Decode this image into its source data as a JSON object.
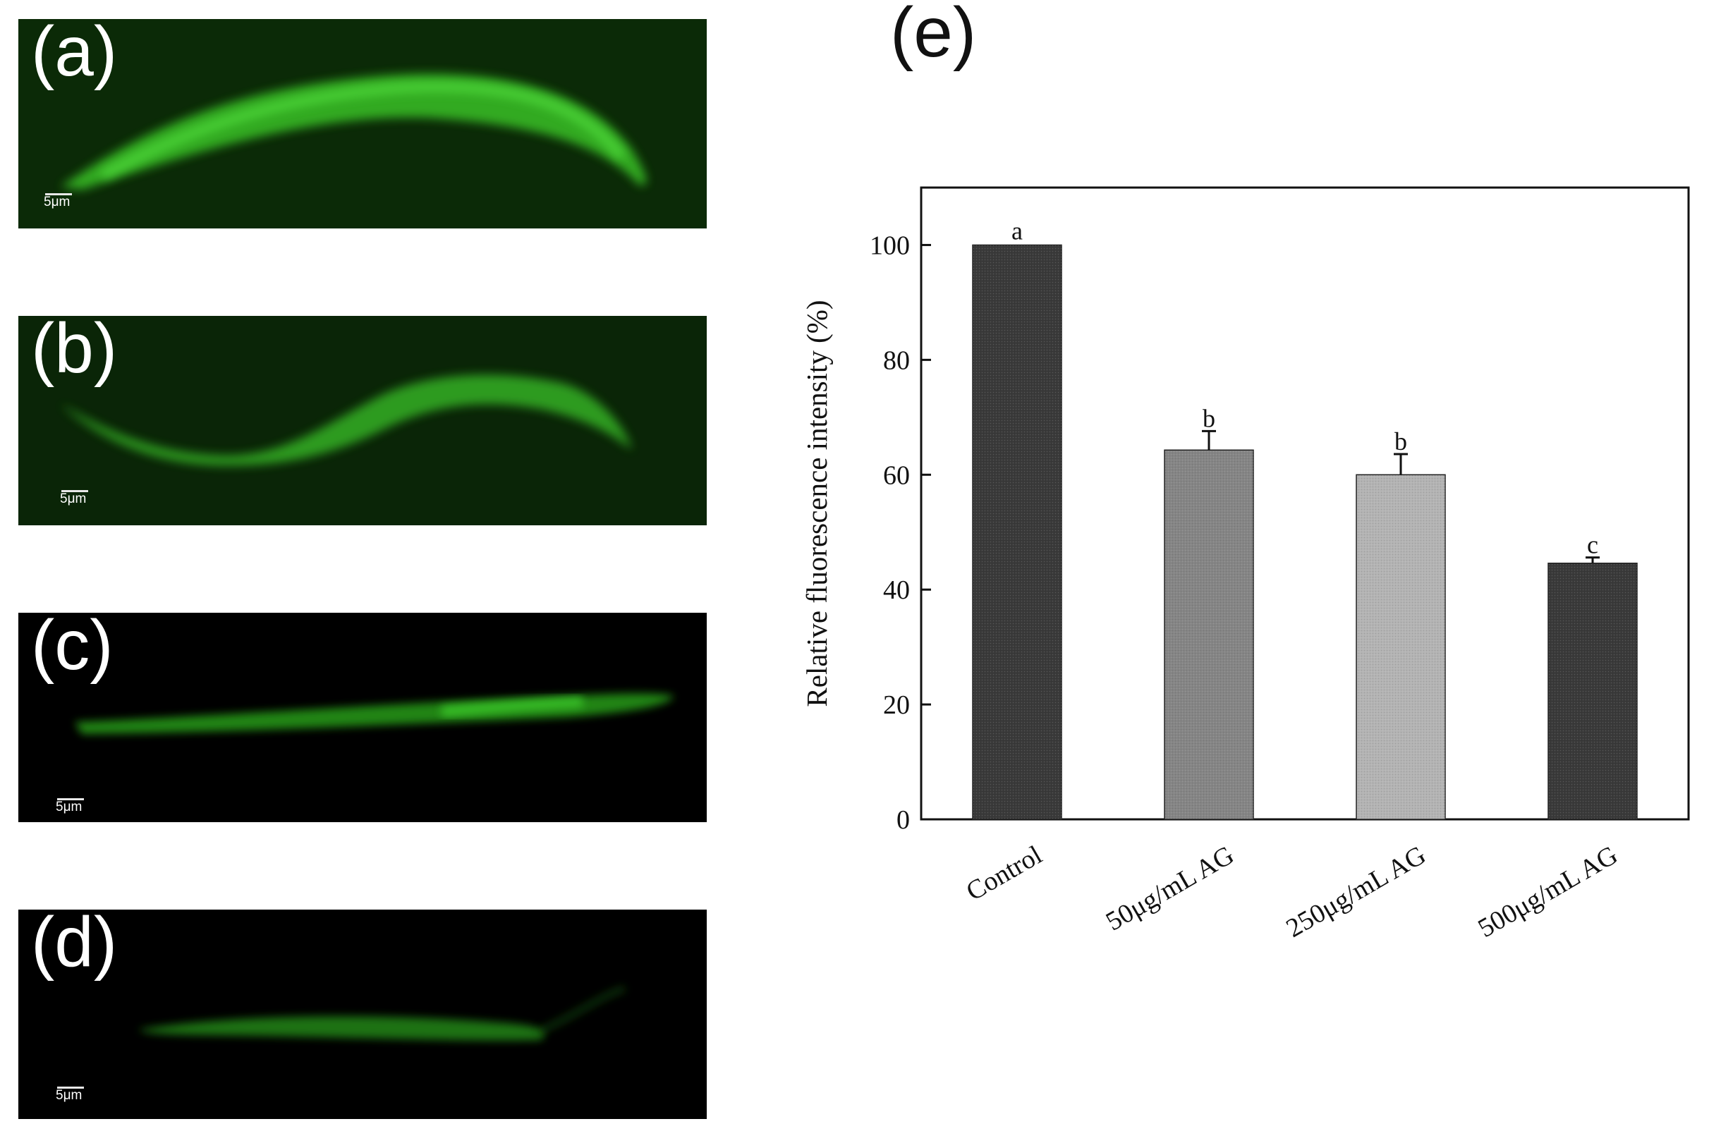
{
  "panels": [
    {
      "letter": "(a)",
      "scale_label": "5μm",
      "background": "#0b2a07",
      "worm_color": "#3fd52c",
      "brightness": 0.85
    },
    {
      "letter": "(b)",
      "scale_label": "5μm",
      "background": "#0a2507",
      "worm_color": "#3ccd2a",
      "brightness": 0.7
    },
    {
      "letter": "(c)",
      "scale_label": "5μm",
      "background": "#000000",
      "worm_color": "#2fb81f",
      "brightness": 0.55
    },
    {
      "letter": "(d)",
      "scale_label": "5μm",
      "background": "#000000",
      "worm_color": "#2ca31c",
      "brightness": 0.4
    }
  ],
  "e_panel_label": "(e)",
  "chart_data": {
    "type": "bar",
    "categories": [
      "Control",
      "50μg/mL AG",
      "250μg/mL AG",
      "500μg/mL AG"
    ],
    "values": [
      100,
      64.3,
      60,
      44.6
    ],
    "errors": [
      0,
      3.3,
      3.6,
      1.0
    ],
    "significance_letters": [
      "a",
      "b",
      "b",
      "c"
    ],
    "bar_colors": [
      "#3a3a3a",
      "#858585",
      "#b3b3b3",
      "#3a3a3a"
    ],
    "xlabel": "",
    "ylabel": "Relative fluorescence intensity (%)",
    "ylim": [
      0,
      110
    ],
    "yticks": [
      0,
      20,
      40,
      60,
      80,
      100
    ],
    "ytick_labels": [
      "0",
      "20",
      "40",
      "60",
      "80",
      "100"
    ],
    "grid": false,
    "legend": "none"
  }
}
